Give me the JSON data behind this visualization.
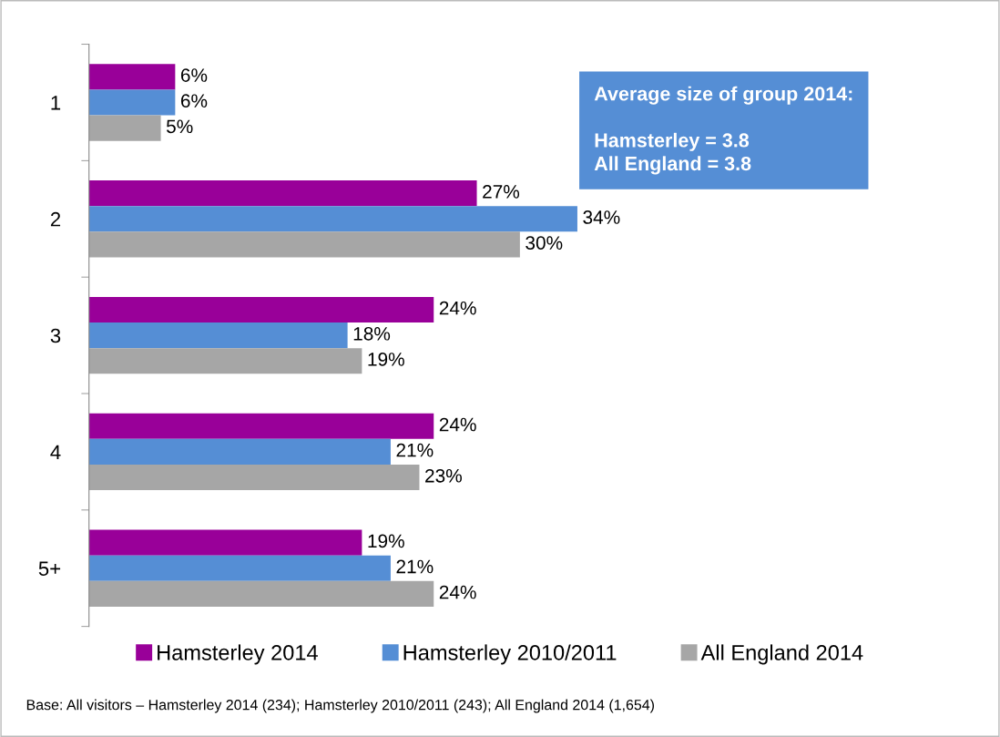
{
  "chart_data": {
    "type": "bar",
    "orientation": "horizontal",
    "categories": [
      "1",
      "2",
      "3",
      "4",
      "5+"
    ],
    "series": [
      {
        "name": "Hamsterley 2014",
        "color": "#990099",
        "values": [
          6,
          27,
          24,
          24,
          19
        ],
        "value_labels": [
          "6%",
          "27%",
          "24%",
          "24%",
          "19%"
        ]
      },
      {
        "name": "Hamsterley 2010/2011",
        "color": "#558ed5",
        "values": [
          6,
          34,
          18,
          21,
          21
        ],
        "value_labels": [
          "6%",
          "34%",
          "18%",
          "21%",
          "21%"
        ]
      },
      {
        "name": "All England 2014",
        "color": "#a6a6a6",
        "values": [
          5,
          30,
          19,
          23,
          24
        ],
        "value_labels": [
          "5%",
          "30%",
          "19%",
          "23%",
          "24%"
        ]
      }
    ],
    "legend": "bottom",
    "grid": false,
    "annotations": [
      "Average size of group 2014:\n\nHamsterley = 3.8\nAll England = 3.8",
      "Base: All visitors – Hamsterley 2014 (234); Hamsterley 2010/2011 (243); All England 2014 (1,654)"
    ]
  }
}
